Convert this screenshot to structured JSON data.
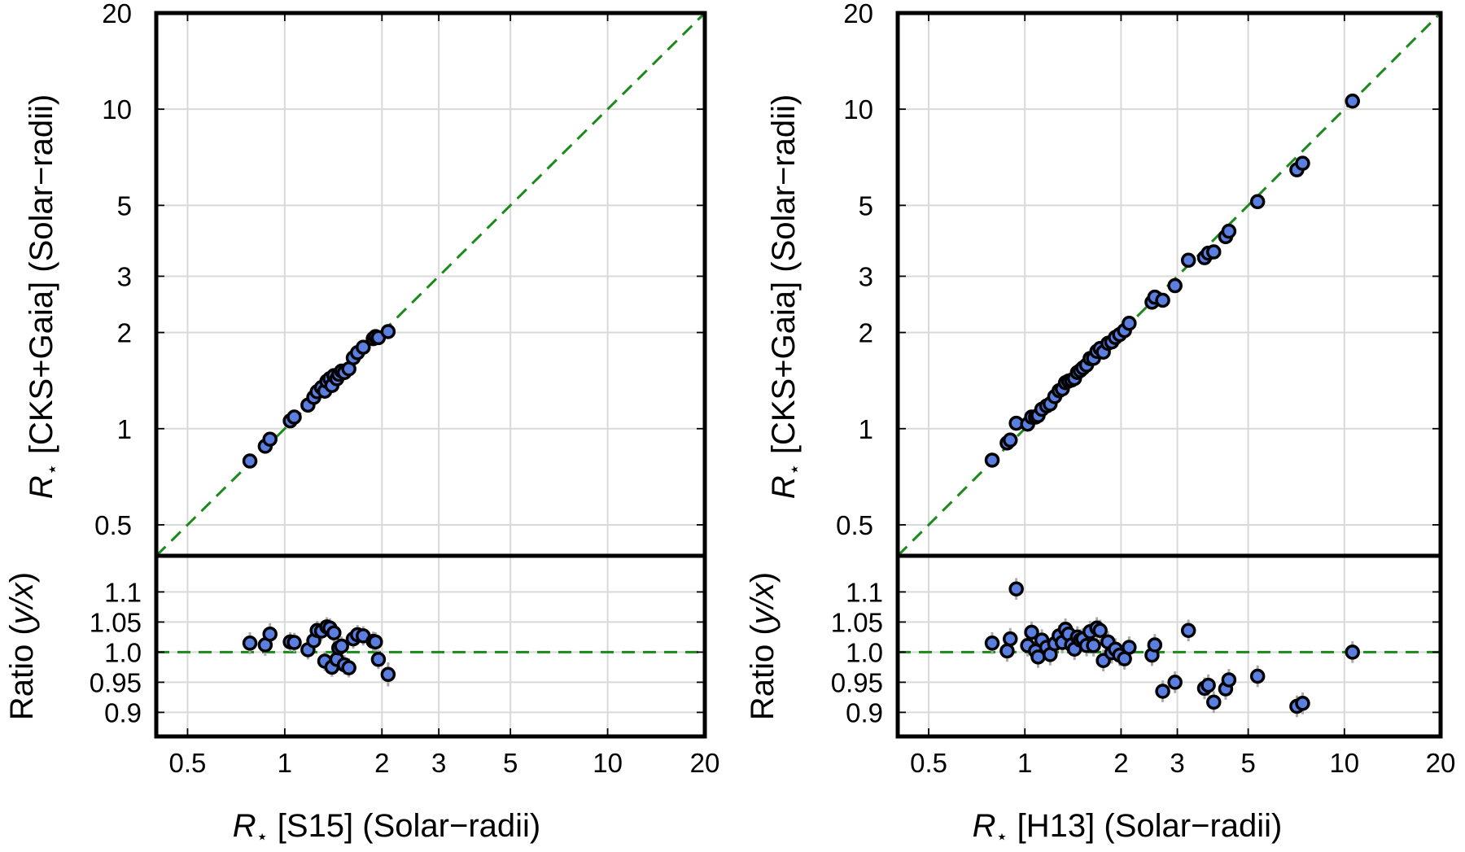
{
  "chart_data": [
    {
      "type": "scatter",
      "panel": "left",
      "ylabel_symbol": "R",
      "ylabel_star": "⋆",
      "ylabel_text": "[CKS+Gaia] (Solar−radii)",
      "xlabel_symbol": "R",
      "xlabel_star": "⋆",
      "xlabel_text": "[S15] (Solar−radii)",
      "ratio_label_pre": "Ratio (",
      "ratio_label_italic": "y/x",
      "ratio_label_post": ")",
      "xscale": "log",
      "yscale": "log",
      "xlim": [
        0.4,
        20
      ],
      "ylim": [
        0.4,
        20
      ],
      "ratio_ylim": [
        0.86,
        1.16
      ],
      "xticks": [
        0.5,
        1,
        2,
        3,
        5,
        10,
        20
      ],
      "xtick_labels": [
        "0.5",
        "1",
        "2",
        "3",
        "5",
        "10",
        "20"
      ],
      "yticks": [
        0.5,
        1,
        2,
        3,
        5,
        10,
        20
      ],
      "ytick_labels": [
        "0.5",
        "1",
        "2",
        "3",
        "5",
        "10",
        "20"
      ],
      "ratio_yticks": [
        0.9,
        0.95,
        1.0,
        1.05,
        1.1
      ],
      "ratio_ytick_labels": [
        "0.9",
        "0.95",
        "1.0",
        "1.05",
        "1.1"
      ],
      "reference": "y = x",
      "x": [
        0.78,
        0.87,
        0.9,
        1.04,
        1.07,
        1.18,
        1.23,
        1.26,
        1.3,
        1.33,
        1.35,
        1.38,
        1.4,
        1.42,
        1.45,
        1.47,
        1.5,
        1.53,
        1.58,
        1.63,
        1.68,
        1.75,
        1.88,
        1.91,
        1.95,
        2.09
      ],
      "y": [
        0.792,
        0.881,
        0.927,
        1.058,
        1.087,
        1.185,
        1.253,
        1.305,
        1.345,
        1.31,
        1.407,
        1.435,
        1.365,
        1.465,
        1.433,
        1.48,
        1.515,
        1.498,
        1.539,
        1.666,
        1.729,
        1.798,
        1.913,
        1.942,
        1.927,
        2.013
      ],
      "ratio": [
        1.015,
        1.012,
        1.03,
        1.017,
        1.016,
        1.004,
        1.019,
        1.036,
        1.035,
        0.985,
        1.042,
        1.04,
        0.975,
        1.032,
        0.988,
        1.007,
        1.01,
        0.979,
        0.974,
        1.022,
        1.029,
        1.027,
        1.018,
        1.017,
        0.988,
        0.963
      ],
      "ratio_err": [
        0.018,
        0.018,
        0.018,
        0.016,
        0.016,
        0.016,
        0.016,
        0.016,
        0.016,
        0.016,
        0.016,
        0.016,
        0.016,
        0.016,
        0.016,
        0.016,
        0.016,
        0.016,
        0.016,
        0.016,
        0.016,
        0.016,
        0.016,
        0.016,
        0.016,
        0.02
      ]
    },
    {
      "type": "scatter",
      "panel": "right",
      "ylabel_symbol": "R",
      "ylabel_star": "⋆",
      "ylabel_text": "[CKS+Gaia] (Solar−radii)",
      "xlabel_symbol": "R",
      "xlabel_star": "⋆",
      "xlabel_text": "[H13] (Solar−radii)",
      "ratio_label_pre": "Ratio (",
      "ratio_label_italic": "y/x",
      "ratio_label_post": ")",
      "xscale": "log",
      "yscale": "log",
      "xlim": [
        0.4,
        20
      ],
      "ylim": [
        0.4,
        20
      ],
      "ratio_ylim": [
        0.86,
        1.16
      ],
      "xticks": [
        0.5,
        1,
        2,
        3,
        5,
        10,
        20
      ],
      "xtick_labels": [
        "0.5",
        "1",
        "2",
        "3",
        "5",
        "10",
        "20"
      ],
      "yticks": [
        0.5,
        1,
        2,
        3,
        5,
        10,
        20
      ],
      "ytick_labels": [
        "0.5",
        "1",
        "2",
        "3",
        "5",
        "10",
        "20"
      ],
      "ratio_yticks": [
        0.9,
        0.95,
        1.0,
        1.05,
        1.1
      ],
      "ratio_ytick_labels": [
        "0.9",
        "0.95",
        "1.0",
        "1.05",
        "1.1"
      ],
      "reference": "y = x",
      "x": [
        0.79,
        0.88,
        0.9,
        0.94,
        1.02,
        1.05,
        1.08,
        1.1,
        1.13,
        1.17,
        1.2,
        1.24,
        1.28,
        1.31,
        1.34,
        1.37,
        1.4,
        1.43,
        1.46,
        1.49,
        1.52,
        1.56,
        1.6,
        1.64,
        1.68,
        1.72,
        1.76,
        1.82,
        1.87,
        1.92,
        1.98,
        2.05,
        2.12,
        2.5,
        2.55,
        2.7,
        2.95,
        3.25,
        3.65,
        3.75,
        3.9,
        4.25,
        4.35,
        5.35,
        7.1,
        7.4,
        10.6
      ],
      "y": [
        0.797,
        0.902,
        0.921,
        1.04,
        1.033,
        1.087,
        1.087,
        1.099,
        1.15,
        1.178,
        1.195,
        1.26,
        1.315,
        1.331,
        1.393,
        1.409,
        1.419,
        1.436,
        1.499,
        1.52,
        1.549,
        1.582,
        1.658,
        1.66,
        1.746,
        1.782,
        1.736,
        1.85,
        1.868,
        1.93,
        1.971,
        2.028,
        2.137,
        2.488,
        2.58,
        2.523,
        2.803,
        3.367,
        3.429,
        3.542,
        3.575,
        3.99,
        4.15,
        5.136,
        6.461,
        6.771,
        10.6
      ],
      "ratio": [
        1.015,
        1.002,
        1.022,
        1.105,
        1.011,
        1.033,
        1.002,
        0.992,
        1.02,
        1.008,
        0.996,
        1.014,
        1.027,
        1.016,
        1.038,
        1.03,
        1.012,
        1.005,
        1.025,
        1.02,
        1.022,
        1.011,
        1.034,
        1.011,
        1.04,
        1.036,
        0.986,
        1.017,
        0.999,
        1.005,
        0.995,
        0.989,
        1.008,
        0.995,
        1.012,
        0.935,
        0.95,
        1.036,
        0.94,
        0.945,
        0.917,
        0.939,
        0.954,
        0.96,
        0.91,
        0.915,
        1.0
      ]
    }
  ]
}
